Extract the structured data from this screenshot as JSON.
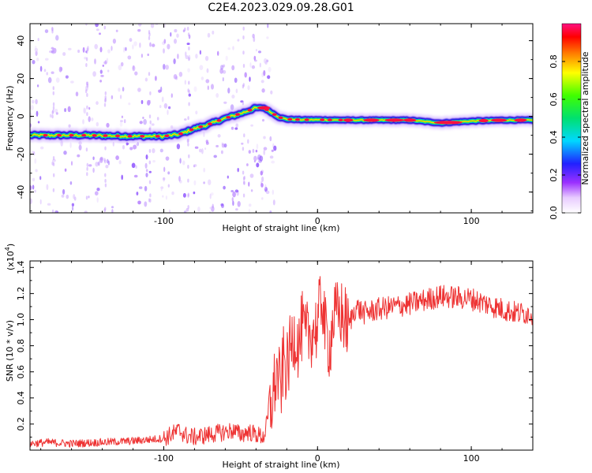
{
  "figure": {
    "title": "C2E4.2023.029.09.28.G01"
  },
  "chart_data": [
    {
      "type": "heatmap",
      "title": "C2E4.2023.029.09.28.G01",
      "xlabel": "Height of straight line (km)",
      "ylabel": "Frequency (Hz)",
      "xlim": [
        -187,
        140
      ],
      "ylim": [
        -51,
        49
      ],
      "x_ticks": [
        -100,
        0,
        100
      ],
      "x_tick_labels": [
        "-100",
        "0",
        "100"
      ],
      "y_ticks": [
        -40,
        -20,
        0,
        20,
        40
      ],
      "y_tick_labels": [
        "-40",
        "-20",
        "0",
        "20",
        "40"
      ],
      "colorbar": {
        "label": "Normalized spectral amplitude",
        "range": [
          0,
          1
        ],
        "ticks": [
          0.0,
          0.2,
          0.4,
          0.6,
          0.8
        ],
        "tick_labels": [
          "0.0",
          "0.2",
          "0.4",
          "0.6",
          "0.8"
        ],
        "colormap": "rainbow (white, violet, blue, cyan, green, yellow, orange, red, magenta)"
      },
      "ridge": {
        "description": "peak frequency of the main spectral ridge versus height",
        "x": [
          -187,
          -150,
          -120,
          -100,
          -90,
          -80,
          -70,
          -60,
          -50,
          -40,
          -35,
          -30,
          -25,
          -20,
          -10,
          0,
          20,
          40,
          60,
          80,
          100,
          120,
          140
        ],
        "y": [
          -10,
          -10,
          -10.5,
          -10.5,
          -9.5,
          -6.5,
          -4,
          -1,
          1.5,
          4.5,
          4.5,
          2,
          -0.5,
          -1.5,
          -1.8,
          -1.8,
          -2,
          -2,
          -2,
          -3.5,
          -2.5,
          -2,
          -2
        ]
      }
    },
    {
      "type": "line",
      "xlabel": "Height of straight line (km)",
      "ylabel": "SNR (10 * v/v)",
      "y_multiplier_label": "(x10",
      "y_multiplier_exponent": "4",
      "xlim": [
        -187,
        140
      ],
      "ylim": [
        0,
        1.45
      ],
      "x_ticks": [
        -100,
        0,
        100
      ],
      "x_tick_labels": [
        "-100",
        "0",
        "100"
      ],
      "y_ticks": [
        0.2,
        0.4,
        0.6,
        0.8,
        1.0,
        1.2,
        1.4
      ],
      "y_tick_labels": [
        "0.2",
        "0.4",
        "0.6",
        "0.8",
        "1.0",
        "1.2",
        "1.4"
      ],
      "line_color": "#ee3333",
      "series": [
        {
          "x": [
            -187,
            -175,
            -160,
            -140,
            -120,
            -110,
            -100,
            -95,
            -90,
            -85,
            -80,
            -70,
            -60,
            -55,
            -50,
            -45,
            -40,
            -35,
            -30,
            -28,
            -26,
            -24,
            -22,
            -20,
            -18,
            -15,
            -12,
            -10,
            -8,
            -5,
            0,
            3,
            5,
            8,
            10,
            15,
            20,
            25,
            30,
            40,
            50,
            60,
            70,
            80,
            90,
            100,
            110,
            120,
            130,
            140
          ],
          "y": [
            0.05,
            0.06,
            0.05,
            0.06,
            0.07,
            0.08,
            0.09,
            0.12,
            0.15,
            0.11,
            0.1,
            0.12,
            0.14,
            0.15,
            0.12,
            0.14,
            0.12,
            0.1,
            0.35,
            0.5,
            0.6,
            0.45,
            0.7,
            0.6,
            0.75,
            0.9,
            0.8,
            0.95,
            0.85,
            0.9,
            0.95,
            1.2,
            0.9,
            0.8,
            1.0,
            1.05,
            0.95,
            1.1,
            1.05,
            1.08,
            1.1,
            1.12,
            1.15,
            1.18,
            1.17,
            1.16,
            1.12,
            1.08,
            1.05,
            1.05
          ]
        }
      ]
    }
  ]
}
